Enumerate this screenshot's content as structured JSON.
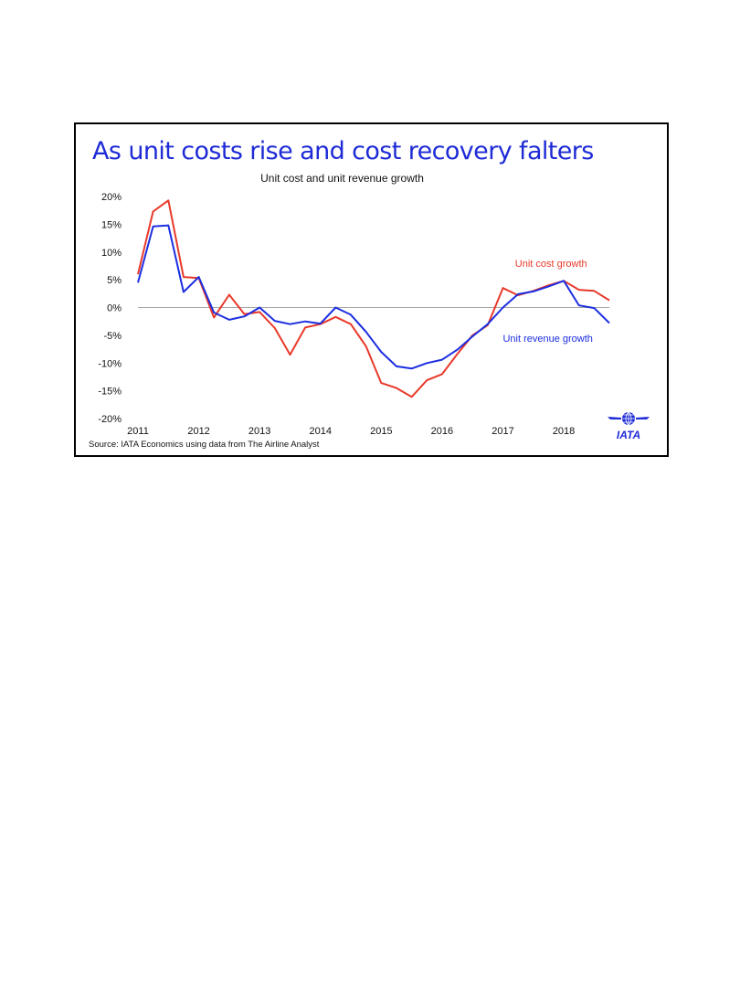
{
  "headline": "As unit costs rise and cost recovery falters",
  "source": "Source: IATA Economics using data from The Airline Analyst",
  "logo": {
    "text": "IATA",
    "icon": "globe-icon"
  },
  "colors": {
    "headline": "#1e2bd6",
    "cost": "#e8392a",
    "revenue": "#1c2ee0"
  },
  "chart_data": {
    "type": "line",
    "title": "Unit cost and unit revenue growth",
    "xlabel": "",
    "ylabel": "",
    "x_ticks": [
      "2011",
      "2012",
      "2013",
      "2014",
      "2015",
      "2016",
      "2017",
      "2018"
    ],
    "x_tick_values": [
      2011,
      2012,
      2013,
      2014,
      2015,
      2016,
      2017,
      2018
    ],
    "xlim": [
      2011,
      2018.75
    ],
    "ylim": [
      -20,
      20
    ],
    "y_ticks": [
      20,
      15,
      10,
      5,
      0,
      -5,
      -10,
      -15,
      -20
    ],
    "y_tick_labels": [
      "20%",
      "15%",
      "10%",
      "5%",
      "0%",
      "-5%",
      "-10%",
      "-15%",
      "-20%"
    ],
    "grid": false,
    "x": [
      2011,
      2011.25,
      2011.5,
      2011.75,
      2012,
      2012.25,
      2012.5,
      2012.75,
      2013,
      2013.25,
      2013.5,
      2013.75,
      2014,
      2014.25,
      2014.5,
      2014.75,
      2015,
      2015.25,
      2015.5,
      2015.75,
      2016,
      2016.25,
      2016.5,
      2016.75,
      2017,
      2017.25,
      2017.5,
      2017.75,
      2018,
      2018.25,
      2018.5,
      2018.75
    ],
    "series": [
      {
        "name": "Unit cost growth",
        "color": "#e8392a",
        "values": [
          6.0,
          17.3,
          19.3,
          5.5,
          5.3,
          -1.8,
          2.3,
          -1.2,
          -0.8,
          -3.7,
          -8.5,
          -3.6,
          -3.0,
          -1.7,
          -3.0,
          -7.0,
          -13.6,
          -14.5,
          -16.1,
          -13.1,
          -12.0,
          -8.4,
          -5.0,
          -3.2,
          3.5,
          2.2,
          3.0,
          4.0,
          4.8,
          3.2,
          3.0,
          1.3
        ]
      },
      {
        "name": "Unit revenue growth",
        "color": "#1c2ee0",
        "values": [
          4.5,
          14.6,
          14.8,
          2.8,
          5.5,
          -0.9,
          -2.2,
          -1.6,
          0.0,
          -2.4,
          -3.0,
          -2.5,
          -2.9,
          0.0,
          -1.3,
          -4.4,
          -8.0,
          -10.6,
          -11.0,
          -10.0,
          -9.4,
          -7.6,
          -5.2,
          -3.0,
          0.0,
          2.4,
          2.9,
          3.8,
          4.8,
          0.4,
          -0.1,
          -2.8
        ]
      }
    ]
  }
}
